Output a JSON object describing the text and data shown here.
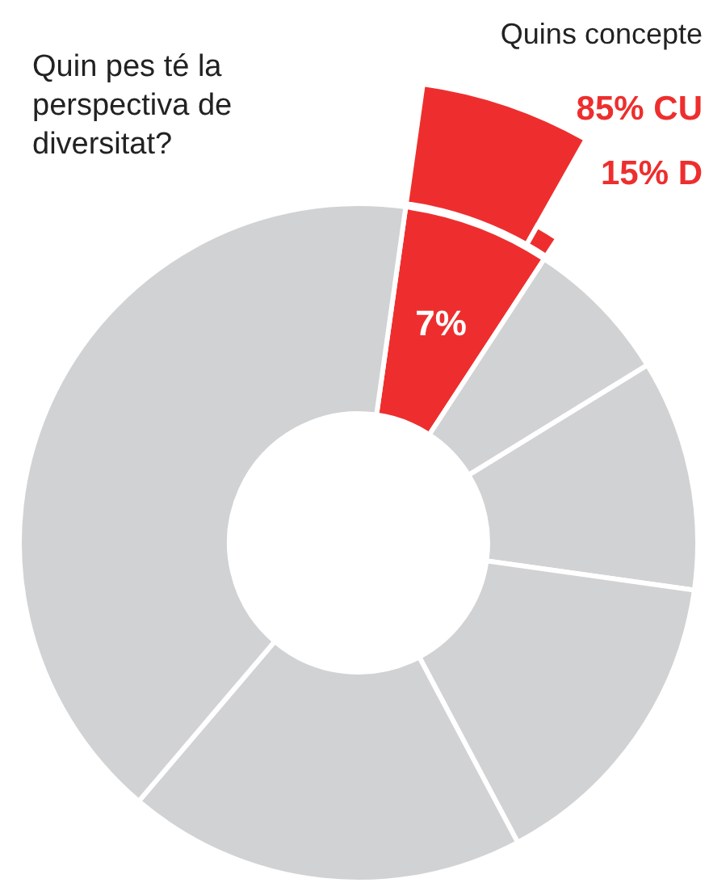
{
  "chart_data": [
    {
      "type": "donut",
      "title": "Quin pes té la perspectiva de diversitat?",
      "categories": [
        null,
        null,
        null,
        null,
        null,
        null
      ],
      "values": [
        7,
        7,
        11,
        15,
        19,
        41
      ],
      "colors": [
        "#ee2e2e",
        "#d1d2d4",
        "#d1d2d4",
        "#d1d2d4",
        "#d1d2d4",
        "#d1d2d4"
      ],
      "value_labels": [
        "7%",
        null,
        null,
        null,
        null,
        null
      ]
    },
    {
      "type": "other",
      "title": "Quins concepte",
      "categories": [
        null,
        null
      ],
      "values": [
        85,
        15
      ],
      "colors": [
        "#ee2e2e",
        "#ee2e2e"
      ],
      "value_labels": [
        "85% CU",
        "15% D"
      ]
    }
  ]
}
